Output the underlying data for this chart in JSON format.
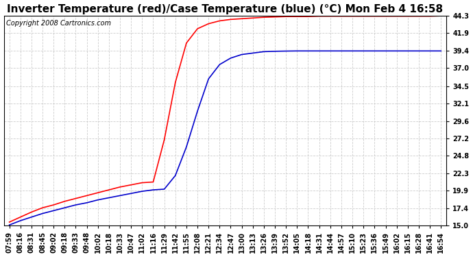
{
  "title": "Inverter Temperature (red)/Case Temperature (blue) (°C) Mon Feb 4 16:58",
  "copyright": "Copyright 2008 Cartronics.com",
  "ylabel_ticks": [
    15.0,
    17.4,
    19.9,
    22.3,
    24.8,
    27.2,
    29.6,
    32.1,
    34.5,
    37.0,
    39.4,
    41.9,
    44.3
  ],
  "ylim": [
    15.0,
    44.3
  ],
  "x_labels": [
    "07:59",
    "08:16",
    "08:31",
    "08:45",
    "09:02",
    "09:18",
    "09:33",
    "09:48",
    "10:02",
    "10:18",
    "10:33",
    "10:47",
    "11:02",
    "11:16",
    "11:29",
    "11:42",
    "11:55",
    "12:08",
    "12:21",
    "12:34",
    "12:47",
    "13:00",
    "13:13",
    "13:26",
    "13:39",
    "13:52",
    "14:05",
    "14:18",
    "14:31",
    "14:44",
    "14:57",
    "15:10",
    "15:23",
    "15:36",
    "15:49",
    "16:02",
    "16:15",
    "16:28",
    "16:41",
    "16:54"
  ],
  "outer_background": "#ffffff",
  "plot_background": "#ffffff",
  "grid_color": "#cccccc",
  "red_color": "#ff0000",
  "blue_color": "#0000cc",
  "title_fontsize": 11,
  "copyright_fontsize": 7,
  "tick_fontsize": 7,
  "red_data": [
    15.5,
    16.2,
    16.9,
    17.5,
    17.9,
    18.4,
    18.8,
    19.2,
    19.6,
    20.0,
    20.4,
    20.7,
    21.0,
    21.1,
    27.0,
    35.0,
    40.5,
    42.5,
    43.2,
    43.6,
    43.8,
    43.9,
    44.0,
    44.1,
    44.15,
    44.2,
    44.2,
    44.2,
    44.25,
    44.25,
    44.25,
    44.25,
    44.25,
    44.25,
    44.25,
    44.25,
    44.25,
    44.25,
    44.25,
    44.3
  ],
  "blue_data": [
    15.1,
    15.7,
    16.2,
    16.7,
    17.1,
    17.5,
    17.9,
    18.2,
    18.6,
    18.9,
    19.2,
    19.5,
    19.8,
    20.0,
    20.1,
    22.0,
    26.0,
    31.0,
    35.5,
    37.5,
    38.4,
    38.9,
    39.1,
    39.3,
    39.35,
    39.38,
    39.4,
    39.4,
    39.4,
    39.4,
    39.4,
    39.4,
    39.4,
    39.4,
    39.4,
    39.4,
    39.4,
    39.4,
    39.4,
    39.4
  ]
}
